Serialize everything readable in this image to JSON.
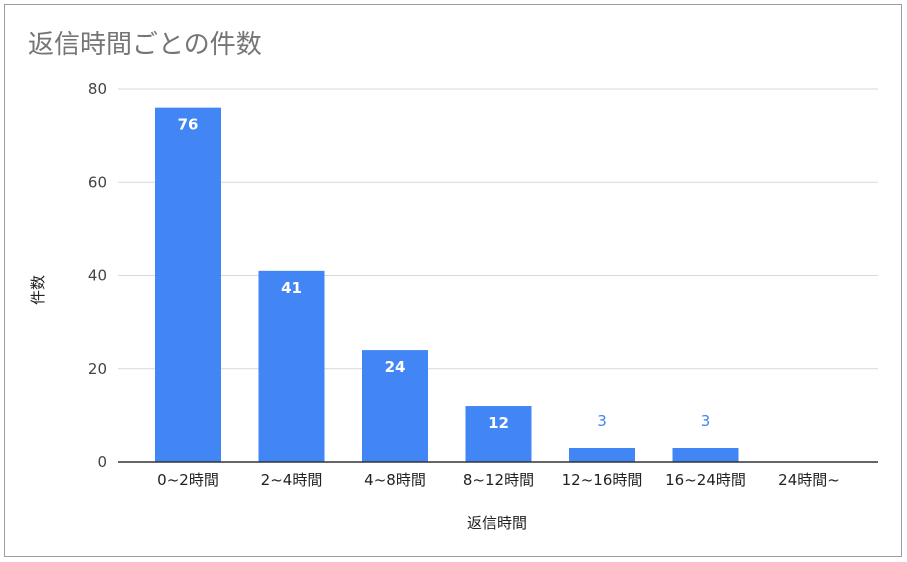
{
  "chart_data": {
    "type": "bar",
    "title": "返信時間ごとの件数",
    "xlabel": "返信時間",
    "ylabel": "件数",
    "categories": [
      "0~2時間",
      "2~4時間",
      "4~8時間",
      "8~12時間",
      "12~16時間",
      "16~24時間",
      "24時間~"
    ],
    "values": [
      76,
      41,
      24,
      12,
      3,
      3,
      0
    ],
    "data_labels": [
      "76",
      "41",
      "24",
      "12",
      "3",
      "3",
      ""
    ],
    "ylim": [
      0,
      80
    ],
    "yticks": [
      0,
      20,
      40,
      60,
      80
    ],
    "grid": true,
    "legend": "none",
    "colors": {
      "bar": "#4285f4",
      "grid": "#d9d9d9",
      "axis": "#333333",
      "title": "#757575"
    }
  }
}
